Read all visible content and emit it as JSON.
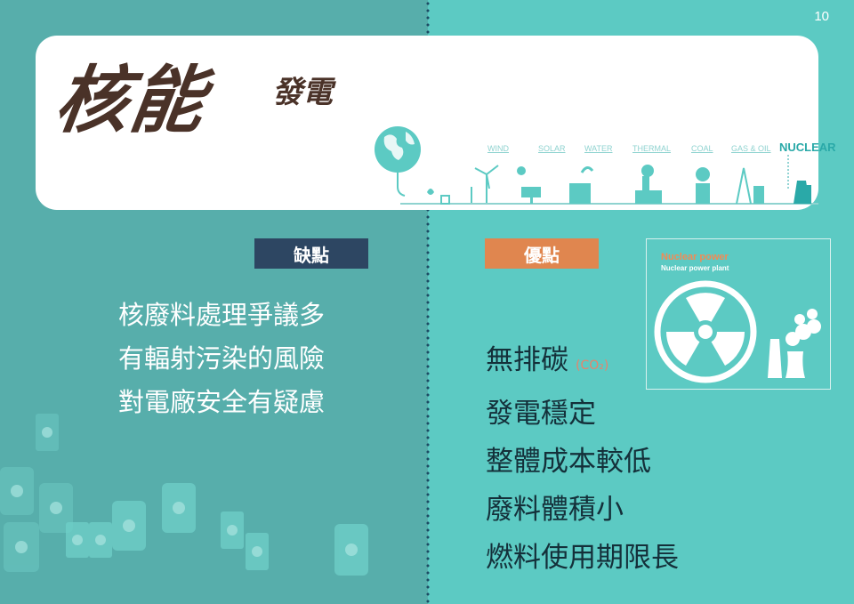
{
  "page_number": "10",
  "title": {
    "main": "核能",
    "sub": "發電"
  },
  "energy_types": [
    {
      "label": "WIND",
      "active": false
    },
    {
      "label": "SOLAR",
      "active": false
    },
    {
      "label": "WATER",
      "active": false
    },
    {
      "label": "THERMAL",
      "active": false
    },
    {
      "label": "COAL",
      "active": false
    },
    {
      "label": "GAS & OIL",
      "active": false
    },
    {
      "label": "NUCLEAR",
      "active": true
    }
  ],
  "cons": {
    "heading": "缺點",
    "items": [
      "核廢料處理爭議多",
      "有輻射污染的風險",
      "對電廠安全有疑慮"
    ]
  },
  "pros": {
    "heading": "優點",
    "items": [
      "無排碳",
      "發電穩定",
      "整體成本較低",
      "廢料體積小",
      "燃料使用期限長"
    ],
    "co2_note": "(CO₂)"
  },
  "nuclear_card": {
    "title": "Nuclear power",
    "subtitle": "Nuclear power plant"
  },
  "colors": {
    "left_bg": "#57aeab",
    "right_bg": "#5ccac3",
    "cons_badge": "#2d4662",
    "pros_badge": "#e0864f",
    "title_text": "#4a3228",
    "accent": "#2aa9a8"
  }
}
